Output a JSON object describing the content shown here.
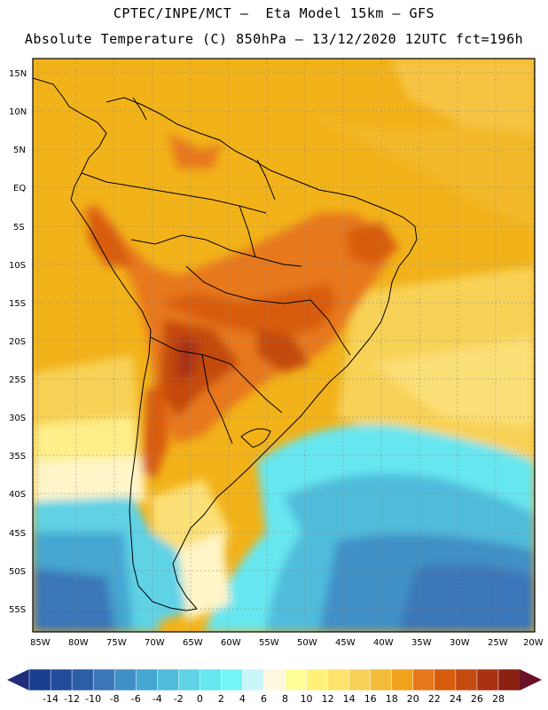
{
  "header": {
    "line1": "CPTEC/INPE/MCT –  Eta Model 15km – GFS",
    "line2": "Absolute Temperature (C) 850hPa – 13/12/2020 12UTC fct=196h"
  },
  "map": {
    "lat_labels": [
      "15N",
      "10N",
      "5N",
      "EQ",
      "5S",
      "10S",
      "15S",
      "20S",
      "25S",
      "30S",
      "35S",
      "40S",
      "45S",
      "50S",
      "55S"
    ],
    "lon_labels": [
      "85W",
      "80W",
      "75W",
      "70W",
      "65W",
      "60W",
      "55W",
      "50W",
      "45W",
      "40W",
      "35W",
      "30W",
      "25W",
      "20W"
    ],
    "region": "South America"
  },
  "colorbar": {
    "levels": [
      "-14",
      "-12",
      "-10",
      "-8",
      "-6",
      "-4",
      "-2",
      "0",
      "2",
      "4",
      "6",
      "8",
      "10",
      "12",
      "14",
      "16",
      "18",
      "20",
      "22",
      "24",
      "26",
      "28"
    ],
    "colors": [
      "#1a3d8f",
      "#224d9c",
      "#2a5fa8",
      "#3a76b8",
      "#3f8fc6",
      "#45a6d1",
      "#4fbcdb",
      "#5fd2e6",
      "#66e6ef",
      "#73f6f6",
      "#c8f6fb",
      "#fff8e0",
      "#ffff99",
      "#fff07a",
      "#fde36a",
      "#f7d157",
      "#f2bb3a",
      "#f0a21c",
      "#e7781a",
      "#d85c0e",
      "#c44a10",
      "#a83212",
      "#8a2010"
    ],
    "arrow_left_color": "#1f2d7a",
    "arrow_right_color": "#6a1028"
  }
}
